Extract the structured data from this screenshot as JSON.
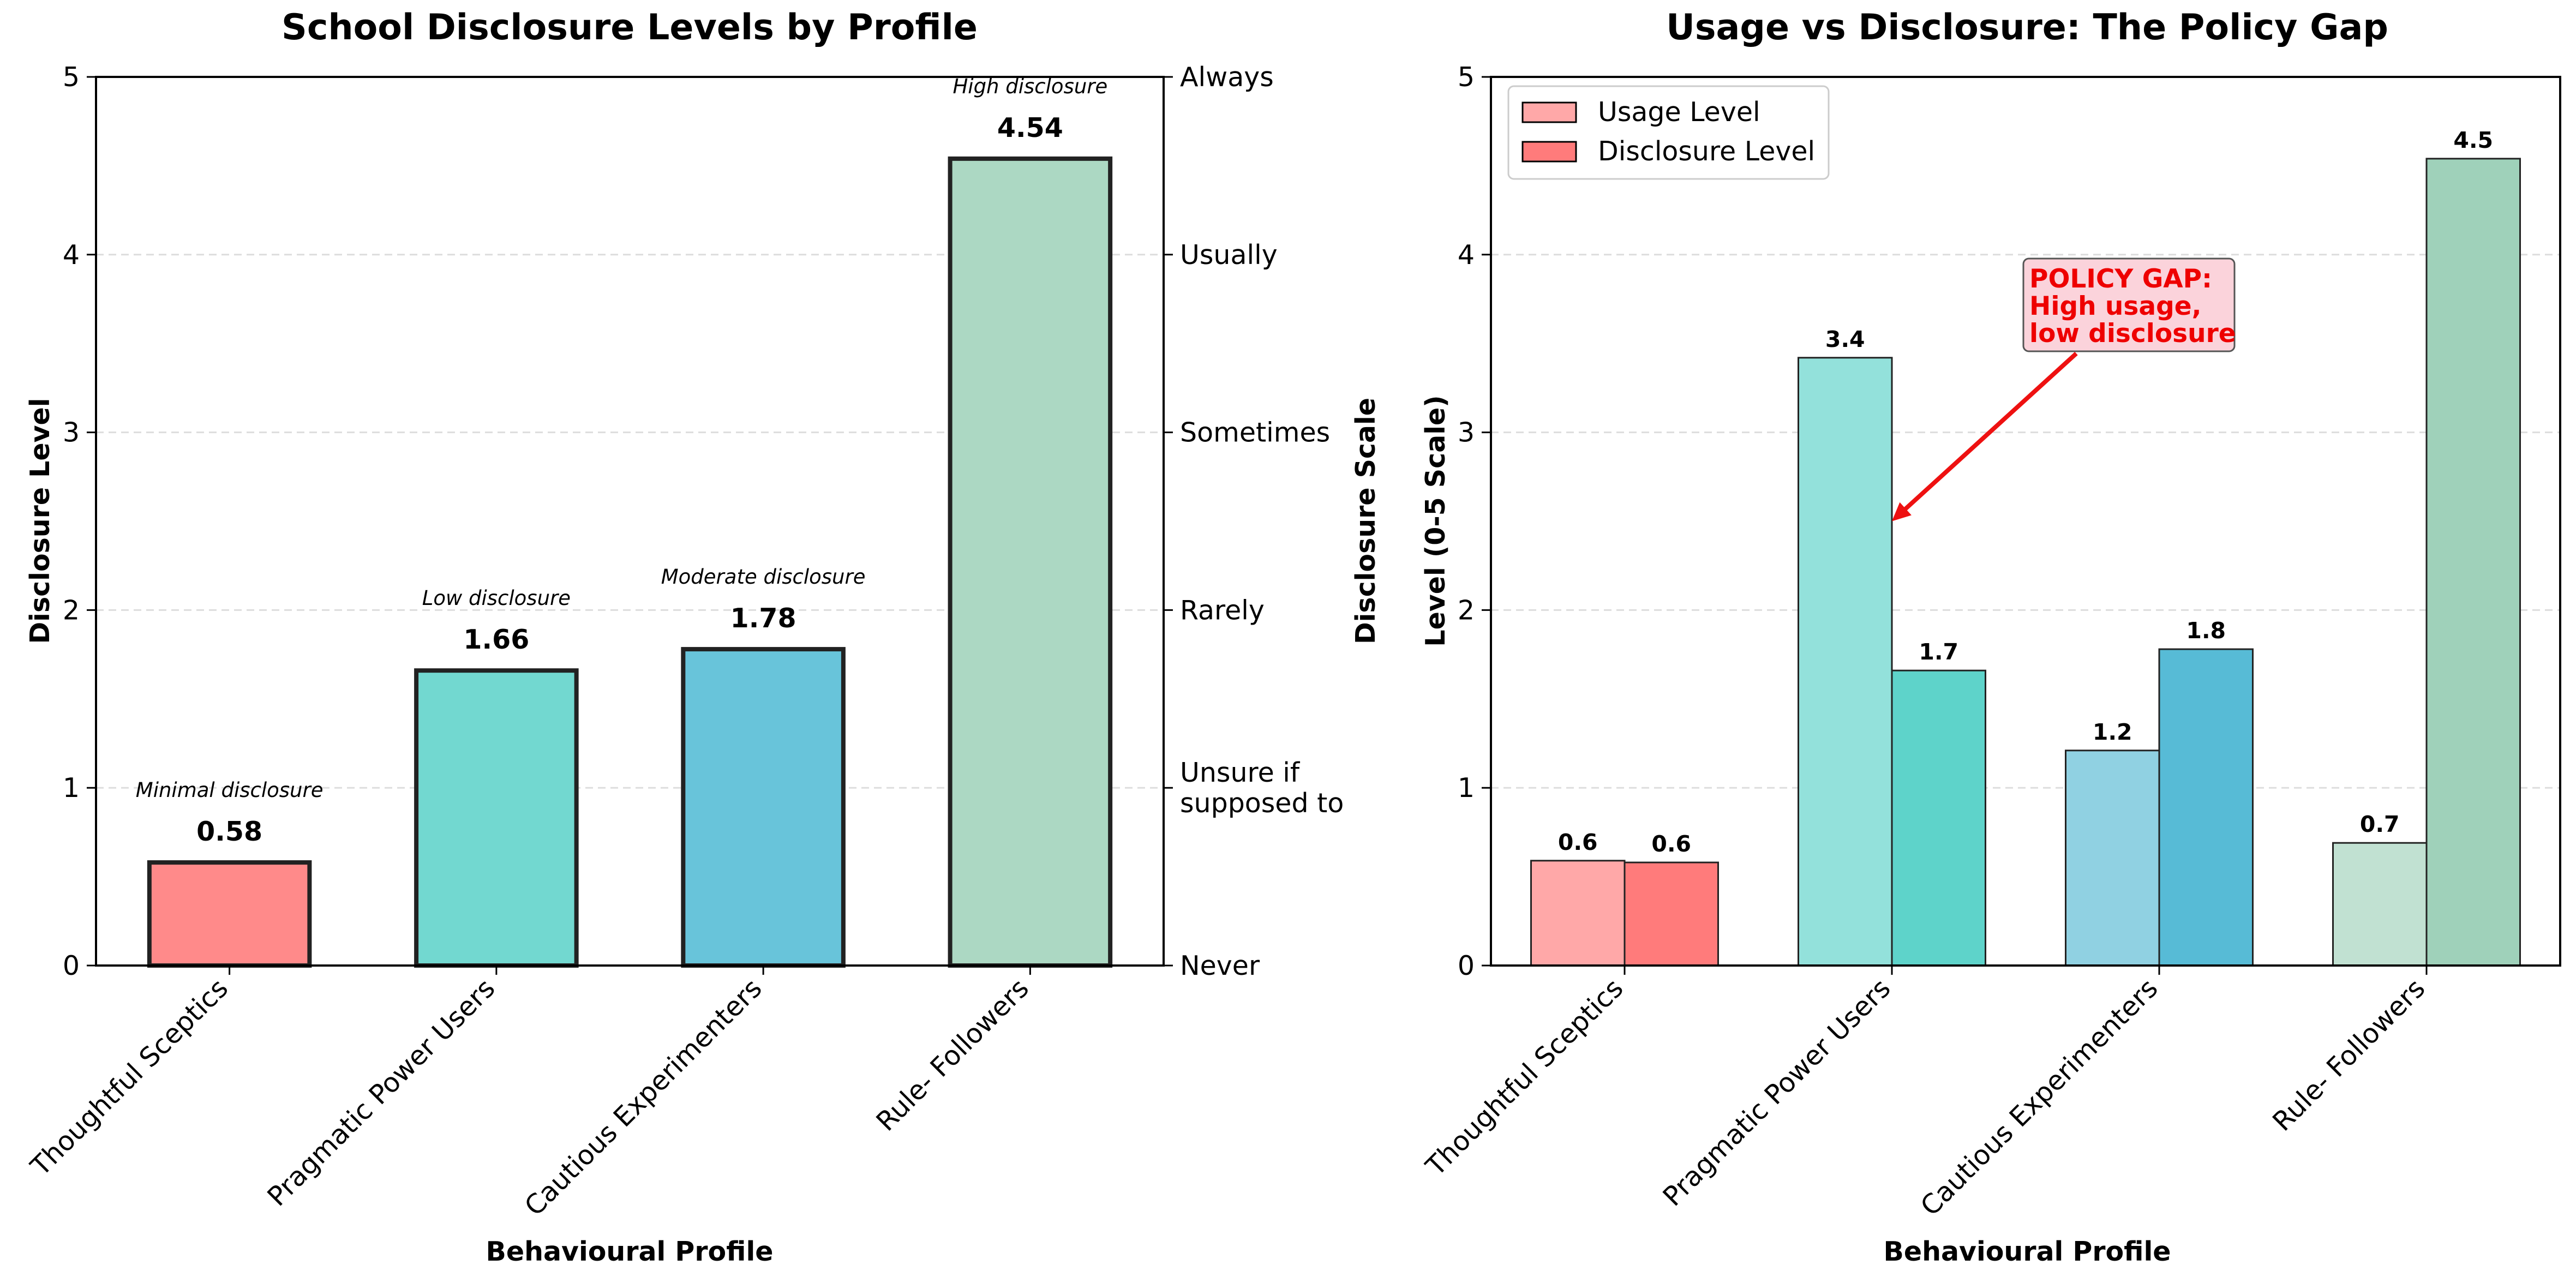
{
  "chart_data": [
    {
      "type": "bar",
      "title": "School Disclosure Levels by Profile",
      "xlabel": "Behavioural Profile",
      "ylabel": "Disclosure Level",
      "ylabel_right": "Disclosure Scale",
      "ylim": [
        0,
        5
      ],
      "yticks": [
        "0",
        "1",
        "2",
        "3",
        "4",
        "5"
      ],
      "right_axis_ticks": [
        {
          "value": 0,
          "label": "Never"
        },
        {
          "value": 1,
          "label": "Unsure if\nsupposed to"
        },
        {
          "value": 2,
          "label": "Rarely"
        },
        {
          "value": 3,
          "label": "Sometimes"
        },
        {
          "value": 4,
          "label": "Usually"
        },
        {
          "value": 5,
          "label": "Always"
        }
      ],
      "grid": "y-dashed",
      "categories": [
        "Thoughtful Sceptics",
        "Pragmatic Power Users",
        "Cautious Experimenters",
        "Rule- Followers"
      ],
      "values": [
        0.58,
        1.66,
        1.78,
        4.54
      ],
      "value_labels": [
        "0.58",
        "1.66",
        "1.78",
        "4.54"
      ],
      "annotations": [
        "Minimal disclosure",
        "Low disclosure",
        "Moderate disclosure",
        "High disclosure"
      ],
      "colors": [
        "#FF8A8A",
        "#72D8D0",
        "#68C4DA",
        "#ACD8C3"
      ]
    },
    {
      "type": "bar",
      "title": "Usage vs Disclosure: The Policy Gap",
      "xlabel": "Behavioural Profile",
      "ylabel": "Level (0-5 Scale)",
      "ylim": [
        0,
        5
      ],
      "yticks": [
        "0",
        "1",
        "2",
        "3",
        "4",
        "5"
      ],
      "grid": "y-dashed",
      "legend_position": "top-left",
      "categories": [
        "Thoughtful Sceptics",
        "Pragmatic Power Users",
        "Cautious Experimenters",
        "Rule- Followers"
      ],
      "series": [
        {
          "name": "Usage Level",
          "values": [
            0.59,
            3.42,
            1.21,
            0.69
          ],
          "value_labels": [
            "0.6",
            "3.4",
            "1.2",
            "0.7"
          ],
          "colors": [
            "#FFA8A8",
            "#93E1DB",
            "#90D1E2",
            "#C1E1D2"
          ],
          "legend_color": "#FFA8A8"
        },
        {
          "name": "Disclosure Level",
          "values": [
            0.58,
            1.66,
            1.78,
            4.54
          ],
          "value_labels": [
            "0.6",
            "1.7",
            "1.8",
            "4.5"
          ],
          "colors": [
            "#FF7B7B",
            "#5ED3CA",
            "#57BBD6",
            "#9FD1BA"
          ],
          "legend_color": "#FF7B7B"
        }
      ],
      "callout": {
        "text": [
          "POLICY GAP:",
          "High usage,",
          "low disclosure"
        ],
        "text_color": "#EE0000",
        "box_color": "#FBD3DB",
        "arrow_color": "#EE1111",
        "points_to": {
          "category": "Pragmatic Power Users",
          "value": 2.5
        }
      }
    }
  ]
}
